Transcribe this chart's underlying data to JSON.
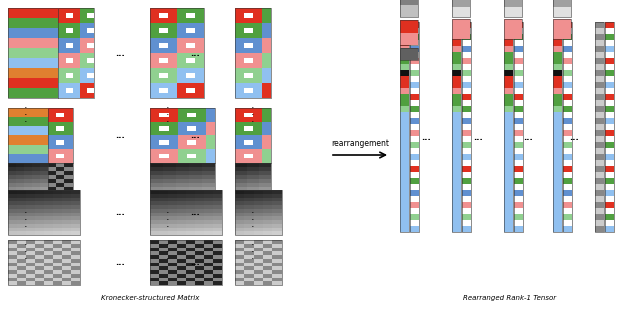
{
  "fig_width": 6.4,
  "fig_height": 3.36,
  "bg_color": "#ffffff",
  "left_label": "Kronecker-structured Matrix",
  "right_label": "Rearranged Rank-1 Tensor",
  "arrow_text": "rearrangement",
  "colors": {
    "red": "#e03020",
    "green": "#50a040",
    "blue": "#6090d0",
    "blue_light": "#90c0f0",
    "pink": "#f09090",
    "green_light": "#90d090",
    "orange": "#e08030",
    "white": "#ffffff",
    "black": "#111111",
    "gray1": "#202020",
    "gray2": "#404040",
    "gray3": "#606060",
    "gray4": "#808080",
    "gray5": "#a0a0a0",
    "gray6": "#c0c0c0",
    "gray7": "#e0e0e0"
  }
}
